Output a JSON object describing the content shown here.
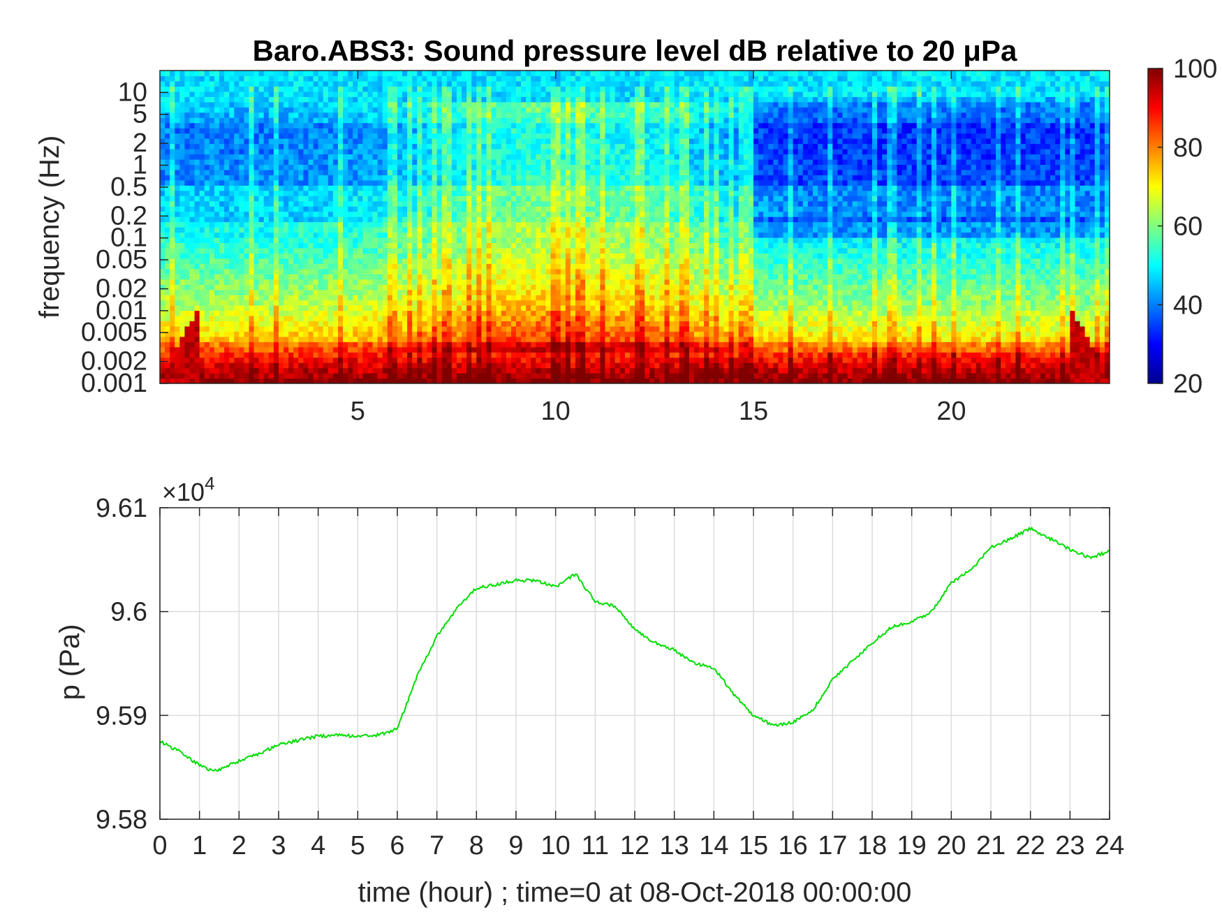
{
  "chart_data": [
    {
      "type": "heatmap",
      "title": "Baro.ABS3: Sound pressure level dB relative to 20 μPa",
      "xlabel": "",
      "ylabel": "frequency (Hz)",
      "xlim": [
        0,
        24
      ],
      "x_ticks": [
        5,
        10,
        15,
        20
      ],
      "x_tick_labels": [
        "5",
        "10",
        "15",
        "20"
      ],
      "y_scale": "log",
      "ylim": [
        0.001,
        20
      ],
      "y_ticks": [
        0.001,
        0.002,
        0.005,
        0.01,
        0.02,
        0.05,
        0.1,
        0.2,
        0.5,
        1,
        2,
        5,
        10
      ],
      "y_tick_labels": [
        "0.001",
        "0.002",
        "0.005",
        "0.01",
        "0.02",
        "0.05",
        "0.1",
        "0.2",
        "0.5",
        "1",
        "2",
        "5",
        "10"
      ],
      "colormap": "jet",
      "colorbar": {
        "limits": [
          20,
          100
        ],
        "ticks": [
          20,
          40,
          60,
          80,
          100
        ],
        "tick_labels": [
          "20",
          "40",
          "60",
          "80",
          "100"
        ]
      },
      "grid": false
    },
    {
      "type": "line",
      "title": "",
      "xlabel": "time (hour) ; time=0 at 08-Oct-2018 00:00:00",
      "ylabel": "p (Pa)",
      "exponent_label": "×10",
      "exponent_power": "4",
      "xlim": [
        0,
        24
      ],
      "ylim": [
        95800,
        96100
      ],
      "x_ticks": [
        0,
        1,
        2,
        3,
        4,
        5,
        6,
        7,
        8,
        9,
        10,
        11,
        12,
        13,
        14,
        15,
        16,
        17,
        18,
        19,
        20,
        21,
        22,
        23,
        24
      ],
      "x_tick_labels": [
        "0",
        "1",
        "2",
        "3",
        "4",
        "5",
        "6",
        "7",
        "8",
        "9",
        "10",
        "11",
        "12",
        "13",
        "14",
        "15",
        "16",
        "17",
        "18",
        "19",
        "20",
        "21",
        "22",
        "23",
        "24"
      ],
      "y_ticks": [
        95800,
        95900,
        96000,
        96100
      ],
      "y_tick_labels": [
        "9.58",
        "9.59",
        "9.6",
        "9.61"
      ],
      "grid": true,
      "series_color": "#00dd00",
      "x": [
        0,
        0.5,
        1,
        1.3,
        1.5,
        2,
        2.5,
        3,
        3.5,
        4,
        4.5,
        5,
        5.5,
        6,
        6.5,
        7,
        7.5,
        8,
        8.5,
        9,
        9.5,
        10,
        10.5,
        11,
        11.5,
        12,
        12.5,
        13,
        13.5,
        14,
        14.5,
        15,
        15.5,
        16,
        16.5,
        17,
        17.5,
        18,
        18.5,
        19,
        19.5,
        20,
        20.5,
        21,
        21.5,
        22,
        22.5,
        23,
        23.5,
        24
      ],
      "y": [
        95875,
        95865,
        95852,
        95847,
        95848,
        95856,
        95863,
        95872,
        95876,
        95880,
        95881,
        95880,
        95881,
        95887,
        95938,
        95976,
        96003,
        96023,
        96026,
        96030,
        96030,
        96024,
        96036,
        96010,
        96005,
        95983,
        95970,
        95963,
        95950,
        95946,
        95920,
        95900,
        95890,
        95893,
        95905,
        95935,
        95952,
        95970,
        95985,
        95990,
        96000,
        96028,
        96040,
        96062,
        96070,
        96080,
        96070,
        96060,
        96052,
        96058
      ]
    }
  ]
}
